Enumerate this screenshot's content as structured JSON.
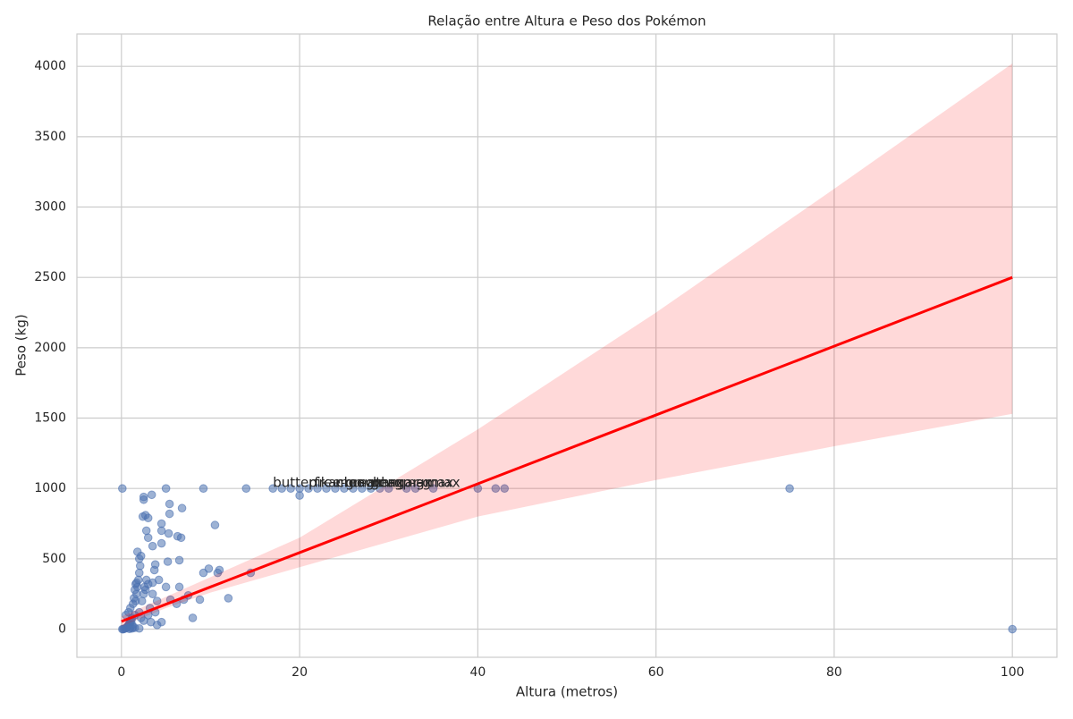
{
  "chart_data": {
    "type": "scatter",
    "title": "Relação entre Altura e Peso dos Pokémon",
    "xlabel": "Altura (metros)",
    "ylabel": "Peso (kg)",
    "color": "#4c72b0",
    "grid": true,
    "xlim": [
      -5,
      105
    ],
    "ylim": [
      -200,
      4230
    ],
    "xticks": [
      0,
      20,
      40,
      60,
      80,
      100
    ],
    "yticks": [
      0,
      500,
      1000,
      1500,
      2000,
      2500,
      3000,
      3500,
      4000
    ],
    "x": [
      0.1,
      0.2,
      0.3,
      0.4,
      0.5,
      0.6,
      0.7,
      0.8,
      0.9,
      1.0,
      1.1,
      1.2,
      0.5,
      0.8,
      1.0,
      1.2,
      1.5,
      1.5,
      1.6,
      1.7,
      1.8,
      1.9,
      2.0,
      2.1,
      2.0,
      2.2,
      1.8,
      1.3,
      1.4,
      1.5,
      1.6,
      1.7,
      2.0,
      2.2,
      2.3,
      2.5,
      2.5,
      2.6,
      2.7,
      2.8,
      3.0,
      3.0,
      3.2,
      3.3,
      3.5,
      3.5,
      3.8,
      4.0,
      4.0,
      4.2,
      4.5,
      1.0,
      1.2,
      1.3,
      0.9,
      2.0,
      0.1,
      2.4,
      2.5,
      2.5,
      2.7,
      2.8,
      3.0,
      3.0,
      3.4,
      3.5,
      3.7,
      3.8,
      4.5,
      4.5,
      4.5,
      5.0,
      5.0,
      5.2,
      5.3,
      5.4,
      5.4,
      5.5,
      6.2,
      6.3,
      6.5,
      6.5,
      6.7,
      6.8,
      7.0,
      7.5,
      8.0,
      8.8,
      9.2,
      9.2,
      9.8,
      10.5,
      10.8,
      11.0,
      12.0,
      14.0,
      14.5,
      17,
      18,
      19,
      20,
      20,
      21,
      22,
      23,
      24,
      25,
      26,
      27,
      28,
      29,
      30,
      32,
      33,
      35,
      40,
      42,
      43,
      75,
      100
    ],
    "values": [
      0,
      0.1,
      2,
      5,
      8,
      10,
      20,
      30,
      40,
      50,
      60,
      80,
      100,
      120,
      150,
      30,
      10,
      100,
      200,
      250,
      300,
      350,
      400,
      450,
      500,
      520,
      550,
      180,
      220,
      280,
      320,
      330,
      120,
      80,
      200,
      250,
      60,
      300,
      280,
      350,
      320,
      100,
      150,
      50,
      250,
      330,
      120,
      200,
      30,
      350,
      50,
      10,
      5,
      15,
      2,
      5,
      999.9,
      800,
      920,
      940,
      810,
      700,
      790,
      650,
      955,
      590,
      420,
      460,
      750,
      700,
      610,
      1000,
      300,
      480,
      680,
      820,
      890,
      210,
      180,
      660,
      490,
      300,
      650,
      860,
      210,
      240,
      80,
      210,
      400,
      999.9,
      430,
      740,
      400,
      420,
      220,
      999.9,
      400,
      999.9,
      999.9,
      999.9,
      950,
      999.9,
      999.9,
      999.9,
      999.9,
      999.9,
      999.9,
      999.9,
      999.9,
      999.9,
      999.9,
      999.9,
      999.9,
      999.9,
      999.9,
      999.9,
      999.9,
      999.9,
      999.9,
      0
    ],
    "regression": {
      "color": "#ff0000",
      "x": [
        0,
        5,
        10,
        20,
        40,
        60,
        80,
        100
      ],
      "values": [
        55,
        177,
        300,
        544,
        1033,
        1522,
        2011,
        2500
      ],
      "lower": [
        20,
        150,
        260,
        440,
        800,
        1060,
        1300,
        1530
      ],
      "upper": [
        90,
        230,
        370,
        650,
        1420,
        2250,
        3130,
        4020
      ]
    },
    "annotations": [
      {
        "text": "butterfree-gmax",
        "x": 17,
        "y": 999.9
      },
      {
        "text": "pikachu-gmax",
        "x": 21,
        "y": 999.9
      },
      {
        "text": "meowth-gmax",
        "x": 24,
        "y": 999.9
      },
      {
        "text": "machamp-gmax",
        "x": 25,
        "y": 999.9
      },
      {
        "text": "gengar-gmax",
        "x": 28,
        "y": 999.9
      }
    ]
  }
}
